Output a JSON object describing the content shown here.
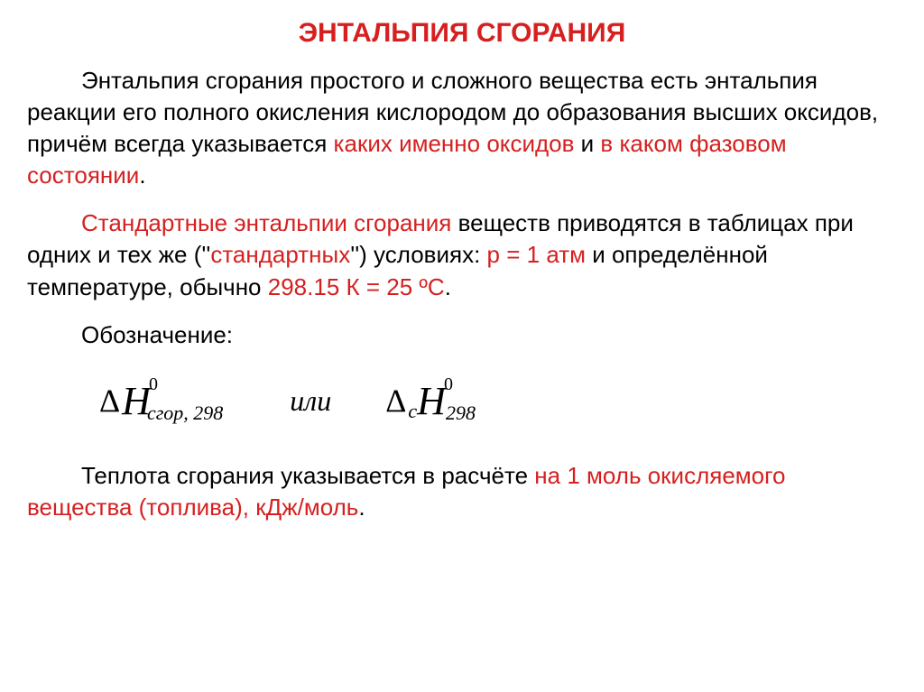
{
  "colors": {
    "red": "#d62020",
    "black": "#000000",
    "background": "#ffffff"
  },
  "typography": {
    "body_font": "Arial, sans-serif",
    "formula_font": "Times New Roman, serif",
    "title_fontsize": 30,
    "body_fontsize": 26,
    "formula_fontsize": 36
  },
  "title": "ЭНТАЛЬПИЯ СГОРАНИЯ",
  "p1": {
    "s1": "Энтальпия сгорания простого и сложного вещества ",
    "s2": "есть энтальпия реакции его полного окисления кислородом до образования высших оксидов, причём всегда указывается ",
    "s3": "каких именно оксидов",
    "s4": " и ",
    "s5": "в каком фазовом состоянии",
    "s6": "."
  },
  "p2": {
    "s1": "Стандартные энтальпии сгорания",
    "s2": " веществ приводятся в таблицах при одних и тех же (''",
    "s3": "стандартных",
    "s4": "'') условиях: ",
    "s5": "р = 1 атм",
    "s6": " и определённой температуре, обычно ",
    "s7": "298.15 К = 25 ºС",
    "s8": "."
  },
  "p3": "Обозначение:",
  "formula": {
    "delta": "Δ",
    "H": "H",
    "sup0": "0",
    "sub1": "сгор, 298",
    "or": "или",
    "sub_c": "с",
    "sub2": "298"
  },
  "p4": {
    "s1": "Теплота сгорания указывается в расчёте ",
    "s2": "на 1 моль окисляемого вещества (топлива), кДж/моль",
    "s3": "."
  }
}
